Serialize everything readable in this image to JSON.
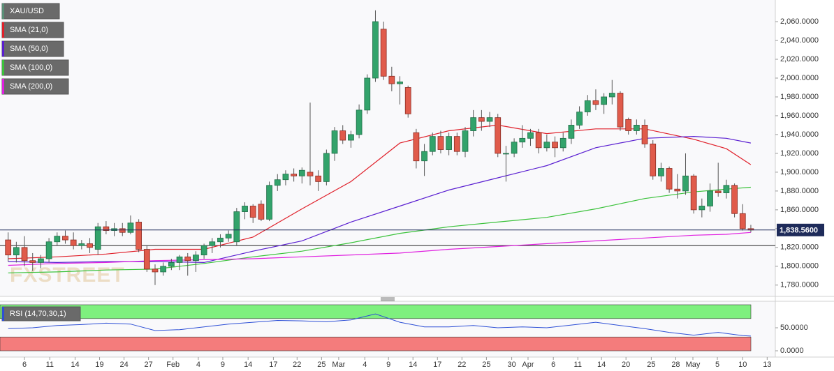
{
  "chart_data": {
    "type": "candlestick",
    "name": "XAU/USD",
    "legend_color": "#5a8f77",
    "up_color": "#33a36b",
    "down_color": "#e05b4b",
    "open": [
      1828,
      1812,
      1820,
      1806,
      1804,
      1808,
      1826,
      1832,
      1828,
      1822,
      1824,
      1818,
      1842,
      1838,
      1840,
      1836,
      1847,
      1818,
      1797,
      1794,
      1800,
      1804,
      1810,
      1806,
      1812,
      1822,
      1826,
      1830,
      1826,
      1858,
      1864,
      1866,
      1850,
      1886,
      1892,
      1898,
      1896,
      1900,
      1896,
      1890,
      1920,
      1944,
      1934,
      1940,
      1966,
      2000,
      2052,
      2002,
      1994,
      1990,
      1942,
      1912,
      1922,
      1938,
      1924,
      1938,
      1922,
      1944,
      1958,
      1954,
      1958,
      1920,
      1920,
      1932,
      1936,
      1942,
      1926,
      1932,
      1926,
      1936,
      1950,
      1964,
      1976,
      1972,
      1980,
      1984,
      1956,
      1944,
      1950,
      1930,
      1896,
      1904,
      1882,
      1880,
      1896,
      1860,
      1864,
      1880,
      1878,
      1886,
      1856,
      1840
    ],
    "high": [
      1836,
      1826,
      1832,
      1814,
      1812,
      1830,
      1836,
      1838,
      1836,
      1828,
      1830,
      1846,
      1848,
      1846,
      1846,
      1854,
      1850,
      1822,
      1802,
      1804,
      1808,
      1812,
      1814,
      1816,
      1824,
      1830,
      1834,
      1838,
      1862,
      1868,
      1866,
      1870,
      1890,
      1898,
      1902,
      1904,
      1905,
      1974,
      1902,
      1924,
      1948,
      1950,
      1944,
      1972,
      2004,
      2072,
      2060,
      2012,
      2002,
      1992,
      1946,
      1930,
      1942,
      1944,
      1942,
      1942,
      1948,
      1966,
      1966,
      1964,
      1962,
      1928,
      1936,
      1950,
      1946,
      1946,
      1940,
      1938,
      1942,
      1956,
      1970,
      1982,
      1988,
      1984,
      1998,
      1986,
      1958,
      1956,
      1956,
      1934,
      1910,
      1906,
      1898,
      1920,
      1898,
      1872,
      1888,
      1910,
      1892,
      1888,
      1866,
      1844
    ],
    "low": [
      1805,
      1804,
      1800,
      1795,
      1798,
      1804,
      1822,
      1824,
      1818,
      1818,
      1814,
      1812,
      1834,
      1832,
      1832,
      1834,
      1815,
      1794,
      1780,
      1790,
      1796,
      1796,
      1790,
      1794,
      1808,
      1814,
      1820,
      1826,
      1822,
      1850,
      1846,
      1848,
      1848,
      1880,
      1886,
      1890,
      1888,
      1886,
      1880,
      1886,
      1912,
      1930,
      1926,
      1936,
      1962,
      1996,
      1998,
      1986,
      1972,
      1958,
      1904,
      1896,
      1918,
      1920,
      1918,
      1918,
      1916,
      1938,
      1944,
      1948,
      1916,
      1890,
      1916,
      1926,
      1928,
      1920,
      1922,
      1916,
      1922,
      1930,
      1946,
      1960,
      1966,
      1962,
      1972,
      1944,
      1940,
      1940,
      1926,
      1892,
      1890,
      1878,
      1872,
      1876,
      1856,
      1852,
      1858,
      1874,
      1872,
      1852,
      1838,
      1836
    ],
    "close": [
      1812,
      1820,
      1806,
      1804,
      1808,
      1826,
      1832,
      1828,
      1822,
      1824,
      1820,
      1842,
      1838,
      1840,
      1836,
      1846,
      1818,
      1797,
      1794,
      1800,
      1804,
      1810,
      1806,
      1812,
      1822,
      1826,
      1830,
      1834,
      1858,
      1864,
      1852,
      1850,
      1886,
      1892,
      1898,
      1896,
      1902,
      1896,
      1890,
      1920,
      1944,
      1934,
      1940,
      1966,
      2000,
      2060,
      2002,
      1994,
      1996,
      1962,
      1912,
      1922,
      1938,
      1924,
      1938,
      1922,
      1944,
      1958,
      1954,
      1958,
      1920,
      1920,
      1932,
      1936,
      1942,
      1926,
      1932,
      1926,
      1936,
      1950,
      1964,
      1976,
      1972,
      1980,
      1984,
      1948,
      1944,
      1950,
      1930,
      1896,
      1904,
      1882,
      1880,
      1896,
      1860,
      1864,
      1880,
      1878,
      1886,
      1856,
      1840,
      1838.56
    ],
    "xlim": [
      -1,
      94
    ],
    "xticks": [
      {
        "value": 2.0,
        "label": "6"
      },
      {
        "value": 5.1,
        "label": "11"
      },
      {
        "value": 8.2,
        "label": "14"
      },
      {
        "value": 11.2,
        "label": "19"
      },
      {
        "value": 14.2,
        "label": "24"
      },
      {
        "value": 17.2,
        "label": "27"
      },
      {
        "value": 20.2,
        "label": "Feb"
      },
      {
        "value": 23.3,
        "label": "4"
      },
      {
        "value": 26.3,
        "label": "9"
      },
      {
        "value": 29.4,
        "label": "14"
      },
      {
        "value": 32.5,
        "label": "17"
      },
      {
        "value": 35.4,
        "label": "22"
      },
      {
        "value": 38.4,
        "label": "25"
      },
      {
        "value": 40.5,
        "label": "Mar"
      },
      {
        "value": 43.7,
        "label": "4"
      },
      {
        "value": 46.6,
        "label": "9"
      },
      {
        "value": 49.6,
        "label": "14"
      },
      {
        "value": 52.6,
        "label": "17"
      },
      {
        "value": 55.6,
        "label": "22"
      },
      {
        "value": 58.6,
        "label": "25"
      },
      {
        "value": 61.7,
        "label": "30"
      },
      {
        "value": 63.7,
        "label": "Apr"
      },
      {
        "value": 66.8,
        "label": "6"
      },
      {
        "value": 69.8,
        "label": "11"
      },
      {
        "value": 72.7,
        "label": "14"
      },
      {
        "value": 75.7,
        "label": "20"
      },
      {
        "value": 78.8,
        "label": "25"
      },
      {
        "value": 81.8,
        "label": "28"
      },
      {
        "value": 83.9,
        "label": "May"
      },
      {
        "value": 86.9,
        "label": "5"
      },
      {
        "value": 90.0,
        "label": "10"
      },
      {
        "value": 93.0,
        "label": "13"
      }
    ],
    "ylim": [
      1768,
      2083
    ],
    "yticks": [
      {
        "value": 1780,
        "label": "1,780.0000"
      },
      {
        "value": 1800,
        "label": "1,800.0000"
      },
      {
        "value": 1820,
        "label": "1,820.0000"
      },
      {
        "value": 1840,
        "label": "1,840.0000"
      },
      {
        "value": 1860,
        "label": "1,860.0000"
      },
      {
        "value": 1880,
        "label": "1,880.0000"
      },
      {
        "value": 1900,
        "label": "1,900.0000"
      },
      {
        "value": 1920,
        "label": "1,920.0000"
      },
      {
        "value": 1940,
        "label": "1,940.0000"
      },
      {
        "value": 1960,
        "label": "1,960.0000"
      },
      {
        "value": 1980,
        "label": "1,980.0000"
      },
      {
        "value": 2000,
        "label": "2,000.0000"
      },
      {
        "value": 2020,
        "label": "2,020.0000"
      },
      {
        "value": 2040,
        "label": "2,040.0000"
      },
      {
        "value": 2060,
        "label": "2,060.0000"
      }
    ],
    "overlays": [
      {
        "name": "SMA (21,0)",
        "color": "#e0202a",
        "x": [
          0,
          6,
          12,
          18,
          24,
          30,
          36,
          42,
          48,
          54,
          60,
          66,
          72,
          78,
          84,
          88,
          91
        ],
        "values": [
          1808,
          1810,
          1813,
          1818,
          1818,
          1831,
          1861,
          1890,
          1931,
          1944,
          1950,
          1941,
          1946,
          1946,
          1935,
          1925,
          1908
        ]
      },
      {
        "name": "SMA (50,0)",
        "color": "#5a1fd1",
        "x": [
          0,
          6,
          12,
          18,
          24,
          30,
          36,
          42,
          48,
          54,
          60,
          66,
          72,
          78,
          84,
          88,
          91
        ],
        "values": [
          1805,
          1804,
          1805,
          1805,
          1804,
          1816,
          1827,
          1847,
          1864,
          1881,
          1894,
          1907,
          1926,
          1936,
          1938,
          1936,
          1931
        ]
      },
      {
        "name": "SMA (100,0)",
        "color": "#3bc23b",
        "x": [
          0,
          6,
          12,
          18,
          24,
          30,
          36,
          42,
          48,
          54,
          60,
          66,
          72,
          78,
          84,
          88,
          91
        ],
        "values": [
          1793,
          1794,
          1796,
          1797,
          1803,
          1810,
          1816,
          1825,
          1835,
          1842,
          1847,
          1852,
          1861,
          1872,
          1879,
          1882,
          1884
        ]
      },
      {
        "name": "SMA (200,0)",
        "color": "#e020e0",
        "x": [
          0,
          6,
          12,
          18,
          24,
          30,
          36,
          42,
          48,
          54,
          60,
          66,
          72,
          78,
          84,
          88,
          91
        ],
        "values": [
          1801,
          1803,
          1804,
          1806,
          1807,
          1808,
          1810,
          1812,
          1814,
          1818,
          1821,
          1824,
          1827,
          1830,
          1833,
          1834,
          1836
        ]
      }
    ],
    "last_price": {
      "value": 1838.56,
      "label": "1,838.5600"
    },
    "last_price_color": "#1e2b5a",
    "support": 1822,
    "watermark": "FXSTREET",
    "rsi": {
      "name": "RSI (14,70,30,1)",
      "color": "#2d4fd6",
      "x": [
        0,
        3,
        6,
        9,
        12,
        15,
        18,
        21,
        24,
        27,
        30,
        33,
        36,
        39,
        42,
        45,
        48,
        51,
        54,
        57,
        60,
        63,
        66,
        69,
        72,
        75,
        78,
        81,
        84,
        87,
        90,
        91
      ],
      "values": [
        48,
        50,
        55,
        57,
        60,
        58,
        44,
        46,
        52,
        58,
        62,
        66,
        65,
        63,
        67,
        80,
        62,
        52,
        52,
        55,
        50,
        52,
        50,
        56,
        62,
        55,
        48,
        40,
        34,
        40,
        33,
        32
      ],
      "ylim": [
        -13.6,
        107.6
      ],
      "yticks": [
        {
          "value": 0,
          "label": "0.0000"
        },
        {
          "value": 50,
          "label": "50.0000"
        }
      ],
      "overbought": [
        70,
        100
      ],
      "oversold": [
        0,
        30
      ],
      "overbought_color": "#7ef07e",
      "oversold_color": "#f47c7c"
    }
  }
}
